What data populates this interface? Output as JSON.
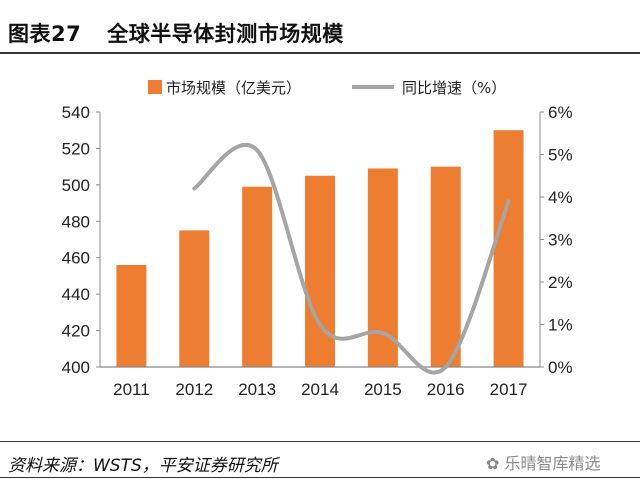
{
  "header": {
    "figure_no": "图表27",
    "title": "全球半导体封测市场规模"
  },
  "footer": {
    "source": "资料来源：WSTS，平安证券研究所",
    "watermark": "乐晴智库精选"
  },
  "chart_data": {
    "type": "bar+line",
    "title": "全球半导体封测市场规模",
    "categories": [
      "2011",
      "2012",
      "2013",
      "2014",
      "2015",
      "2016",
      "2017"
    ],
    "series": [
      {
        "name": "市场规模（亿美元）",
        "type": "bar",
        "axis": "left",
        "color": "#ED7D31",
        "values": [
          456,
          475,
          499,
          505,
          509,
          510,
          530
        ]
      },
      {
        "name": "同比增速（%）",
        "type": "line",
        "axis": "right",
        "color": "#A5A5A5",
        "smooth": true,
        "values": [
          null,
          4.2,
          5.1,
          1.0,
          0.8,
          0.0,
          3.9
        ]
      }
    ],
    "left_axis": {
      "range": [
        400,
        540
      ],
      "ticks": [
        "400",
        "420",
        "440",
        "460",
        "480",
        "500",
        "520",
        "540"
      ]
    },
    "right_axis": {
      "range": [
        0,
        6
      ],
      "ticks": [
        "0%",
        "1%",
        "2%",
        "3%",
        "4%",
        "5%",
        "6%"
      ]
    },
    "legend": "top",
    "grid": false
  }
}
